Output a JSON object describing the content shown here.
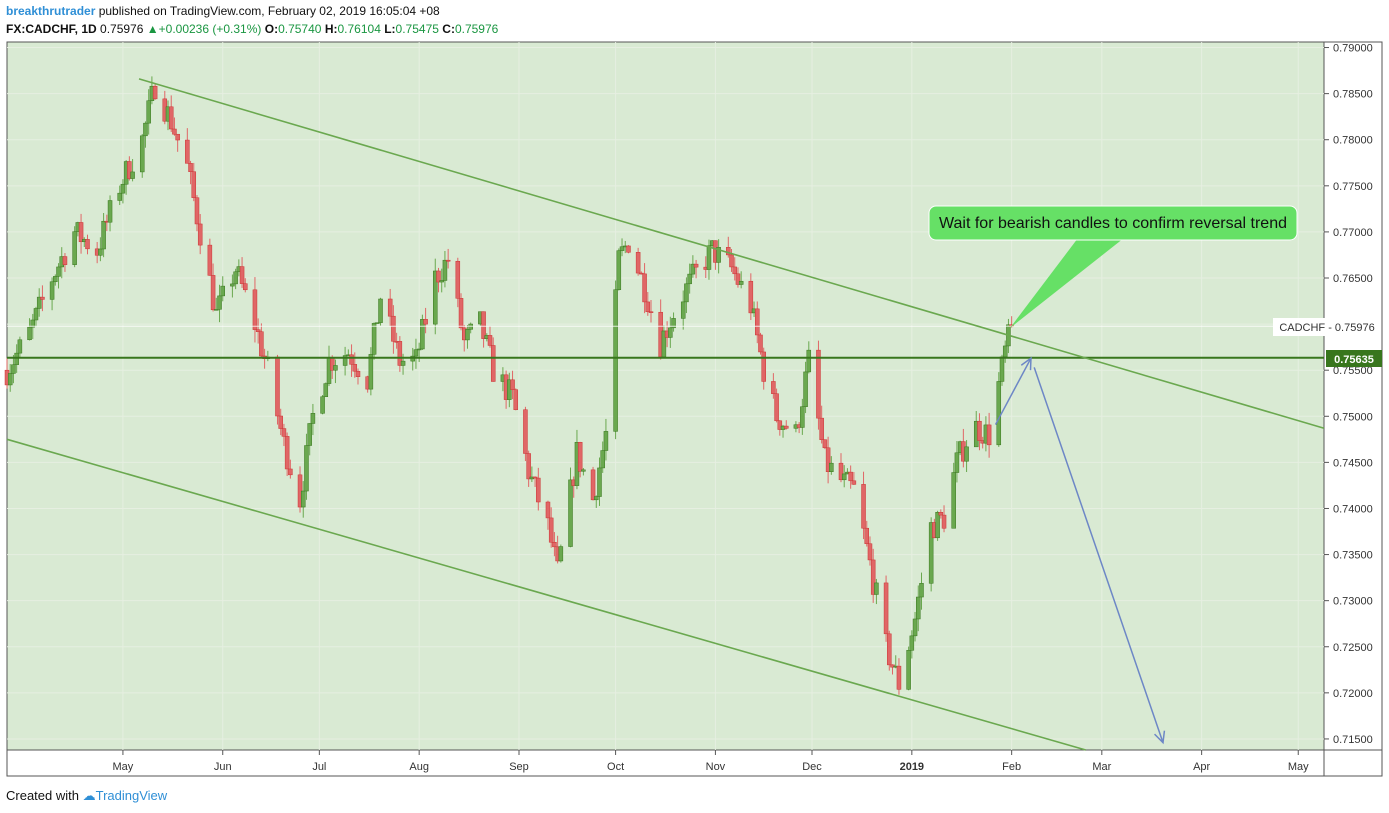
{
  "header": {
    "author": "breakthrutrader",
    "published_text": " published on TradingView.com, February 02, 2019 16:05:04 +08",
    "symbol": "FX:CADCHF, 1D",
    "last": "0.75976",
    "change": "+0.00236 (+0.31%)",
    "o_label": "O:",
    "o_val": "0.75740",
    "h_label": "H:",
    "h_val": "0.76104",
    "l_label": "L:",
    "l_val": "0.75475",
    "c_label": "C:",
    "c_val": "0.75976"
  },
  "footer": {
    "created_with": "Created with",
    "brand": "TradingView"
  },
  "colors": {
    "chart_bg": "#d9ead3",
    "up": "#6aa84f",
    "down": "#e06666",
    "trend": "#6aa84f",
    "hline": "#38761d",
    "arrow": "#6d87c6",
    "callout": "#66e066"
  },
  "annotation": "Wait for bearish candles to confirm reversal trend",
  "chart_data": {
    "type": "candlestick",
    "symbol": "CADCHF",
    "last_price_label": "CADCHF - 0.75976",
    "hline_label": "0.75635",
    "ylim": [
      0.7138,
      0.7906
    ],
    "y_ticks": [
      "0.79000",
      "0.78500",
      "0.78000",
      "0.77500",
      "0.77000",
      "0.76500",
      "0.76000",
      "0.75500",
      "0.75000",
      "0.74500",
      "0.74000",
      "0.73500",
      "0.73000",
      "0.72500",
      "0.72000",
      "0.71500"
    ],
    "x_ticks": [
      {
        "label": "May",
        "date": "2018-05-01"
      },
      {
        "label": "Jun",
        "date": "2018-06-01"
      },
      {
        "label": "Jul",
        "date": "2018-07-01"
      },
      {
        "label": "Aug",
        "date": "2018-08-01"
      },
      {
        "label": "Sep",
        "date": "2018-09-01"
      },
      {
        "label": "Oct",
        "date": "2018-10-01"
      },
      {
        "label": "Nov",
        "date": "2018-11-01"
      },
      {
        "label": "Dec",
        "date": "2018-12-01"
      },
      {
        "label": "2019",
        "date": "2019-01-01",
        "bold": true
      },
      {
        "label": "Feb",
        "date": "2019-02-01"
      },
      {
        "label": "Mar",
        "date": "2019-03-01"
      },
      {
        "label": "Apr",
        "date": "2019-04-01"
      },
      {
        "label": "May",
        "date": "2019-05-01"
      }
    ],
    "xlim": [
      "2018-03-26",
      "2019-05-09"
    ],
    "horizontal_line": 0.75635,
    "channel_upper": [
      {
        "date": "2018-05-06",
        "price": 0.7866
      },
      {
        "date": "2019-05-09",
        "price": 0.7487
      }
    ],
    "channel_lower": [
      {
        "date": "2018-03-26",
        "price": 0.7475
      },
      {
        "date": "2019-02-24",
        "price": 0.7138
      }
    ],
    "projection": [
      {
        "date": "2019-01-27",
        "price": 0.7491
      },
      {
        "date": "2019-02-07",
        "price": 0.7563
      },
      {
        "date": "2019-02-08",
        "price": 0.7553
      },
      {
        "date": "2019-03-20",
        "price": 0.7146
      }
    ],
    "closes": [
      [
        "2018-03-26",
        0.755
      ],
      [
        "2018-04-02",
        0.759
      ],
      [
        "2018-04-09",
        0.765
      ],
      [
        "2018-04-16",
        0.77
      ],
      [
        "2018-04-23",
        0.768
      ],
      [
        "2018-04-30",
        0.775
      ],
      [
        "2018-05-07",
        0.78
      ],
      [
        "2018-05-11",
        0.786
      ],
      [
        "2018-05-16",
        0.782
      ],
      [
        "2018-05-21",
        0.777
      ],
      [
        "2018-05-25",
        0.77
      ],
      [
        "2018-05-30",
        0.761
      ],
      [
        "2018-06-05",
        0.766
      ],
      [
        "2018-06-11",
        0.76
      ],
      [
        "2018-06-15",
        0.755
      ],
      [
        "2018-06-20",
        0.747
      ],
      [
        "2018-06-25",
        0.741
      ],
      [
        "2018-06-29",
        0.75
      ],
      [
        "2018-07-04",
        0.756
      ],
      [
        "2018-07-10",
        0.757
      ],
      [
        "2018-07-16",
        0.754
      ],
      [
        "2018-07-20",
        0.763
      ],
      [
        "2018-07-26",
        0.756
      ],
      [
        "2018-07-31",
        0.756
      ],
      [
        "2018-08-06",
        0.765
      ],
      [
        "2018-08-10",
        0.767
      ],
      [
        "2018-08-15",
        0.758
      ],
      [
        "2018-08-20",
        0.76
      ],
      [
        "2018-08-24",
        0.755
      ],
      [
        "2018-08-30",
        0.752
      ],
      [
        "2018-09-04",
        0.744
      ],
      [
        "2018-09-10",
        0.738
      ],
      [
        "2018-09-13",
        0.733
      ],
      [
        "2018-09-19",
        0.746
      ],
      [
        "2018-09-24",
        0.741
      ],
      [
        "2018-09-28",
        0.748
      ],
      [
        "2018-10-02",
        0.767
      ],
      [
        "2018-10-05",
        0.769
      ],
      [
        "2018-10-10",
        0.764
      ],
      [
        "2018-10-15",
        0.758
      ],
      [
        "2018-10-20",
        0.762
      ],
      [
        "2018-10-25",
        0.765
      ],
      [
        "2018-10-31",
        0.768
      ],
      [
        "2018-11-06",
        0.766
      ],
      [
        "2018-11-12",
        0.762
      ],
      [
        "2018-11-16",
        0.755
      ],
      [
        "2018-11-20",
        0.75
      ],
      [
        "2018-11-26",
        0.748
      ],
      [
        "2018-11-30",
        0.756
      ],
      [
        "2018-12-05",
        0.745
      ],
      [
        "2018-12-10",
        0.743
      ],
      [
        "2018-12-14",
        0.742
      ],
      [
        "2018-12-19",
        0.734
      ],
      [
        "2018-12-24",
        0.725
      ],
      [
        "2018-12-28",
        0.721
      ],
      [
        "2019-01-02",
        0.728
      ],
      [
        "2019-01-07",
        0.738
      ],
      [
        "2019-01-11",
        0.739
      ],
      [
        "2019-01-15",
        0.745
      ],
      [
        "2019-01-20",
        0.749
      ],
      [
        "2019-01-25",
        0.748
      ],
      [
        "2019-01-30",
        0.757
      ],
      [
        "2019-02-01",
        0.75976
      ]
    ]
  }
}
